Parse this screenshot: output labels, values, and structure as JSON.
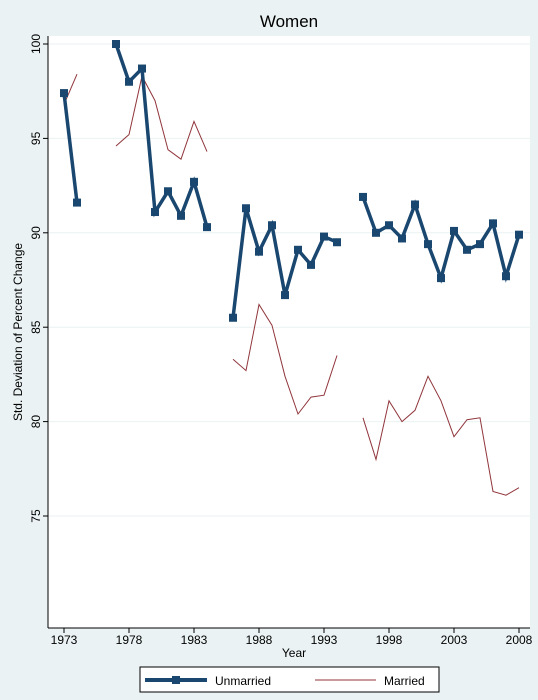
{
  "chart_data": {
    "type": "line",
    "title": "Women",
    "xlabel": "Year",
    "ylabel": "Std. Deviation of Percent Change",
    "xlim": [
      1973,
      2008
    ],
    "ylim": [
      65,
      100.5
    ],
    "xticks": [
      1973,
      1978,
      1983,
      1988,
      1993,
      1998,
      2003,
      2008
    ],
    "yticks": [
      75,
      80,
      85,
      90,
      95,
      100
    ],
    "grid": true,
    "legend_position": "bottom",
    "series": [
      {
        "name": "Unmarried",
        "color": "#1A476F",
        "marker": "square",
        "segments": [
          [
            [
              1973,
              97.4
            ],
            [
              1974,
              91.6
            ]
          ],
          [
            [
              1977,
              100.0
            ],
            [
              1978,
              98.0
            ],
            [
              1979,
              98.7
            ],
            [
              1980,
              91.1
            ],
            [
              1981,
              92.2
            ],
            [
              1982,
              90.9
            ],
            [
              1983,
              92.7
            ],
            [
              1984,
              90.3
            ]
          ],
          [
            [
              1986,
              85.5
            ],
            [
              1987,
              91.3
            ],
            [
              1988,
              89.0
            ],
            [
              1989,
              90.4
            ],
            [
              1990,
              86.7
            ],
            [
              1991,
              89.1
            ],
            [
              1992,
              88.3
            ],
            [
              1993,
              89.8
            ],
            [
              1994,
              89.5
            ]
          ],
          [
            [
              1996,
              91.9
            ],
            [
              1997,
              90.0
            ],
            [
              1998,
              90.4
            ],
            [
              1999,
              89.7
            ],
            [
              2000,
              91.5
            ],
            [
              2001,
              89.4
            ],
            [
              2002,
              87.6
            ],
            [
              2003,
              90.1
            ],
            [
              2004,
              89.1
            ],
            [
              2005,
              89.4
            ],
            [
              2006,
              90.5
            ],
            [
              2007,
              87.7
            ],
            [
              2008,
              89.9
            ]
          ]
        ]
      },
      {
        "name": "Married",
        "color": "#90353B",
        "marker": "none",
        "segments": [
          [
            [
              1973,
              96.8
            ],
            [
              1974,
              98.4
            ]
          ],
          [
            [
              1977,
              94.6
            ],
            [
              1978,
              95.2
            ],
            [
              1979,
              98.3
            ],
            [
              1980,
              97.0
            ],
            [
              1981,
              94.4
            ],
            [
              1982,
              93.9
            ],
            [
              1983,
              95.9
            ],
            [
              1984,
              94.3
            ]
          ],
          [
            [
              1986,
              83.3
            ],
            [
              1987,
              82.7
            ],
            [
              1988,
              86.2
            ],
            [
              1989,
              85.1
            ],
            [
              1990,
              82.4
            ],
            [
              1991,
              80.4
            ],
            [
              1992,
              81.3
            ],
            [
              1993,
              81.4
            ],
            [
              1994,
              83.5
            ]
          ],
          [
            [
              1996,
              80.2
            ],
            [
              1997,
              78.0
            ],
            [
              1998,
              81.1
            ],
            [
              1999,
              80.0
            ],
            [
              2000,
              80.6
            ],
            [
              2001,
              82.4
            ],
            [
              2002,
              81.1
            ],
            [
              2003,
              79.2
            ],
            [
              2004,
              80.1
            ],
            [
              2005,
              80.2
            ],
            [
              2006,
              76.3
            ],
            [
              2007,
              76.1
            ],
            [
              2008,
              76.5
            ]
          ]
        ]
      }
    ]
  }
}
